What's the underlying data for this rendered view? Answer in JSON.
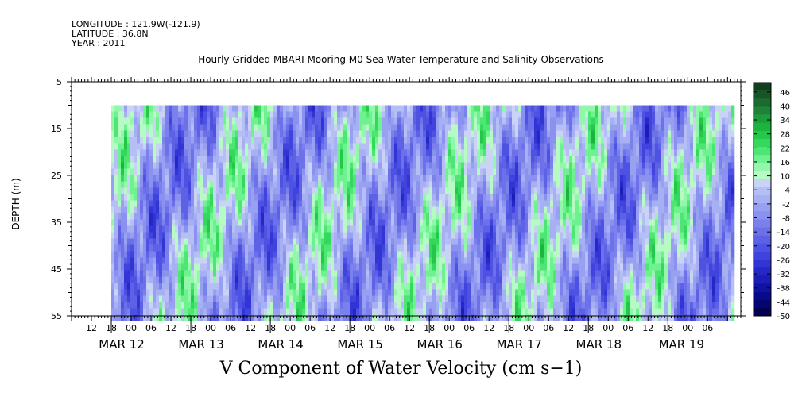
{
  "header": {
    "longitude": "LONGITUDE : 121.9W(-121.9)",
    "latitude": "LATITUDE : 36.8N",
    "year": "YEAR : 2011"
  },
  "chart_data": {
    "type": "heatmap",
    "title": "Hourly Gridded MBARI Mooring M0 Sea Water Temperature and Salinity Observations",
    "xlabel": "V Component of Water Velocity (cm s−1)",
    "ylabel": "DEPTH (m)",
    "ylim": [
      55,
      5
    ],
    "y_ticks": [
      5,
      15,
      25,
      35,
      45,
      55
    ],
    "x_hour_labels": [
      "12",
      "18",
      "00",
      "06",
      "12",
      "18",
      "00",
      "06",
      "12",
      "18",
      "00",
      "06",
      "12",
      "18",
      "00",
      "06",
      "12",
      "18",
      "00",
      "06",
      "12",
      "18",
      "00",
      "06",
      "12",
      "18",
      "00",
      "06",
      "12",
      "18",
      "00",
      "06"
    ],
    "x_date_labels": [
      "MAR 12",
      "MAR 13",
      "MAR 14",
      "MAR 15",
      "MAR 16",
      "MAR 17",
      "MAR 18",
      "MAR 19"
    ],
    "data_depth_range": [
      10,
      55
    ],
    "data_time_start": "MAR 12 18:00",
    "data_time_end": "MAR 19 08:00",
    "colorbar": {
      "min": -50,
      "max": 50,
      "labels": [
        46,
        40,
        34,
        28,
        22,
        16,
        10,
        4,
        -2,
        -8,
        -14,
        -20,
        -26,
        -32,
        -38,
        -44,
        -50
      ],
      "colors": [
        "#113f1c",
        "#175427",
        "#1b6a2f",
        "#1f8237",
        "#1a9d3a",
        "#1cb43f",
        "#24c74a",
        "#33d85c",
        "#4ee673",
        "#6ef18f",
        "#93f7ab",
        "#b5fbc3",
        "#c9d3f5",
        "#b6bff5",
        "#a7b0f3",
        "#98a0f2",
        "#8a91ef",
        "#7b81ec",
        "#6c71e9",
        "#5c61e6",
        "#4e52e2",
        "#4043dc",
        "#3234d3",
        "#2527c7",
        "#1a1db6",
        "#1012a2",
        "#080a8c",
        "#040570",
        "#020250"
      ]
    }
  }
}
